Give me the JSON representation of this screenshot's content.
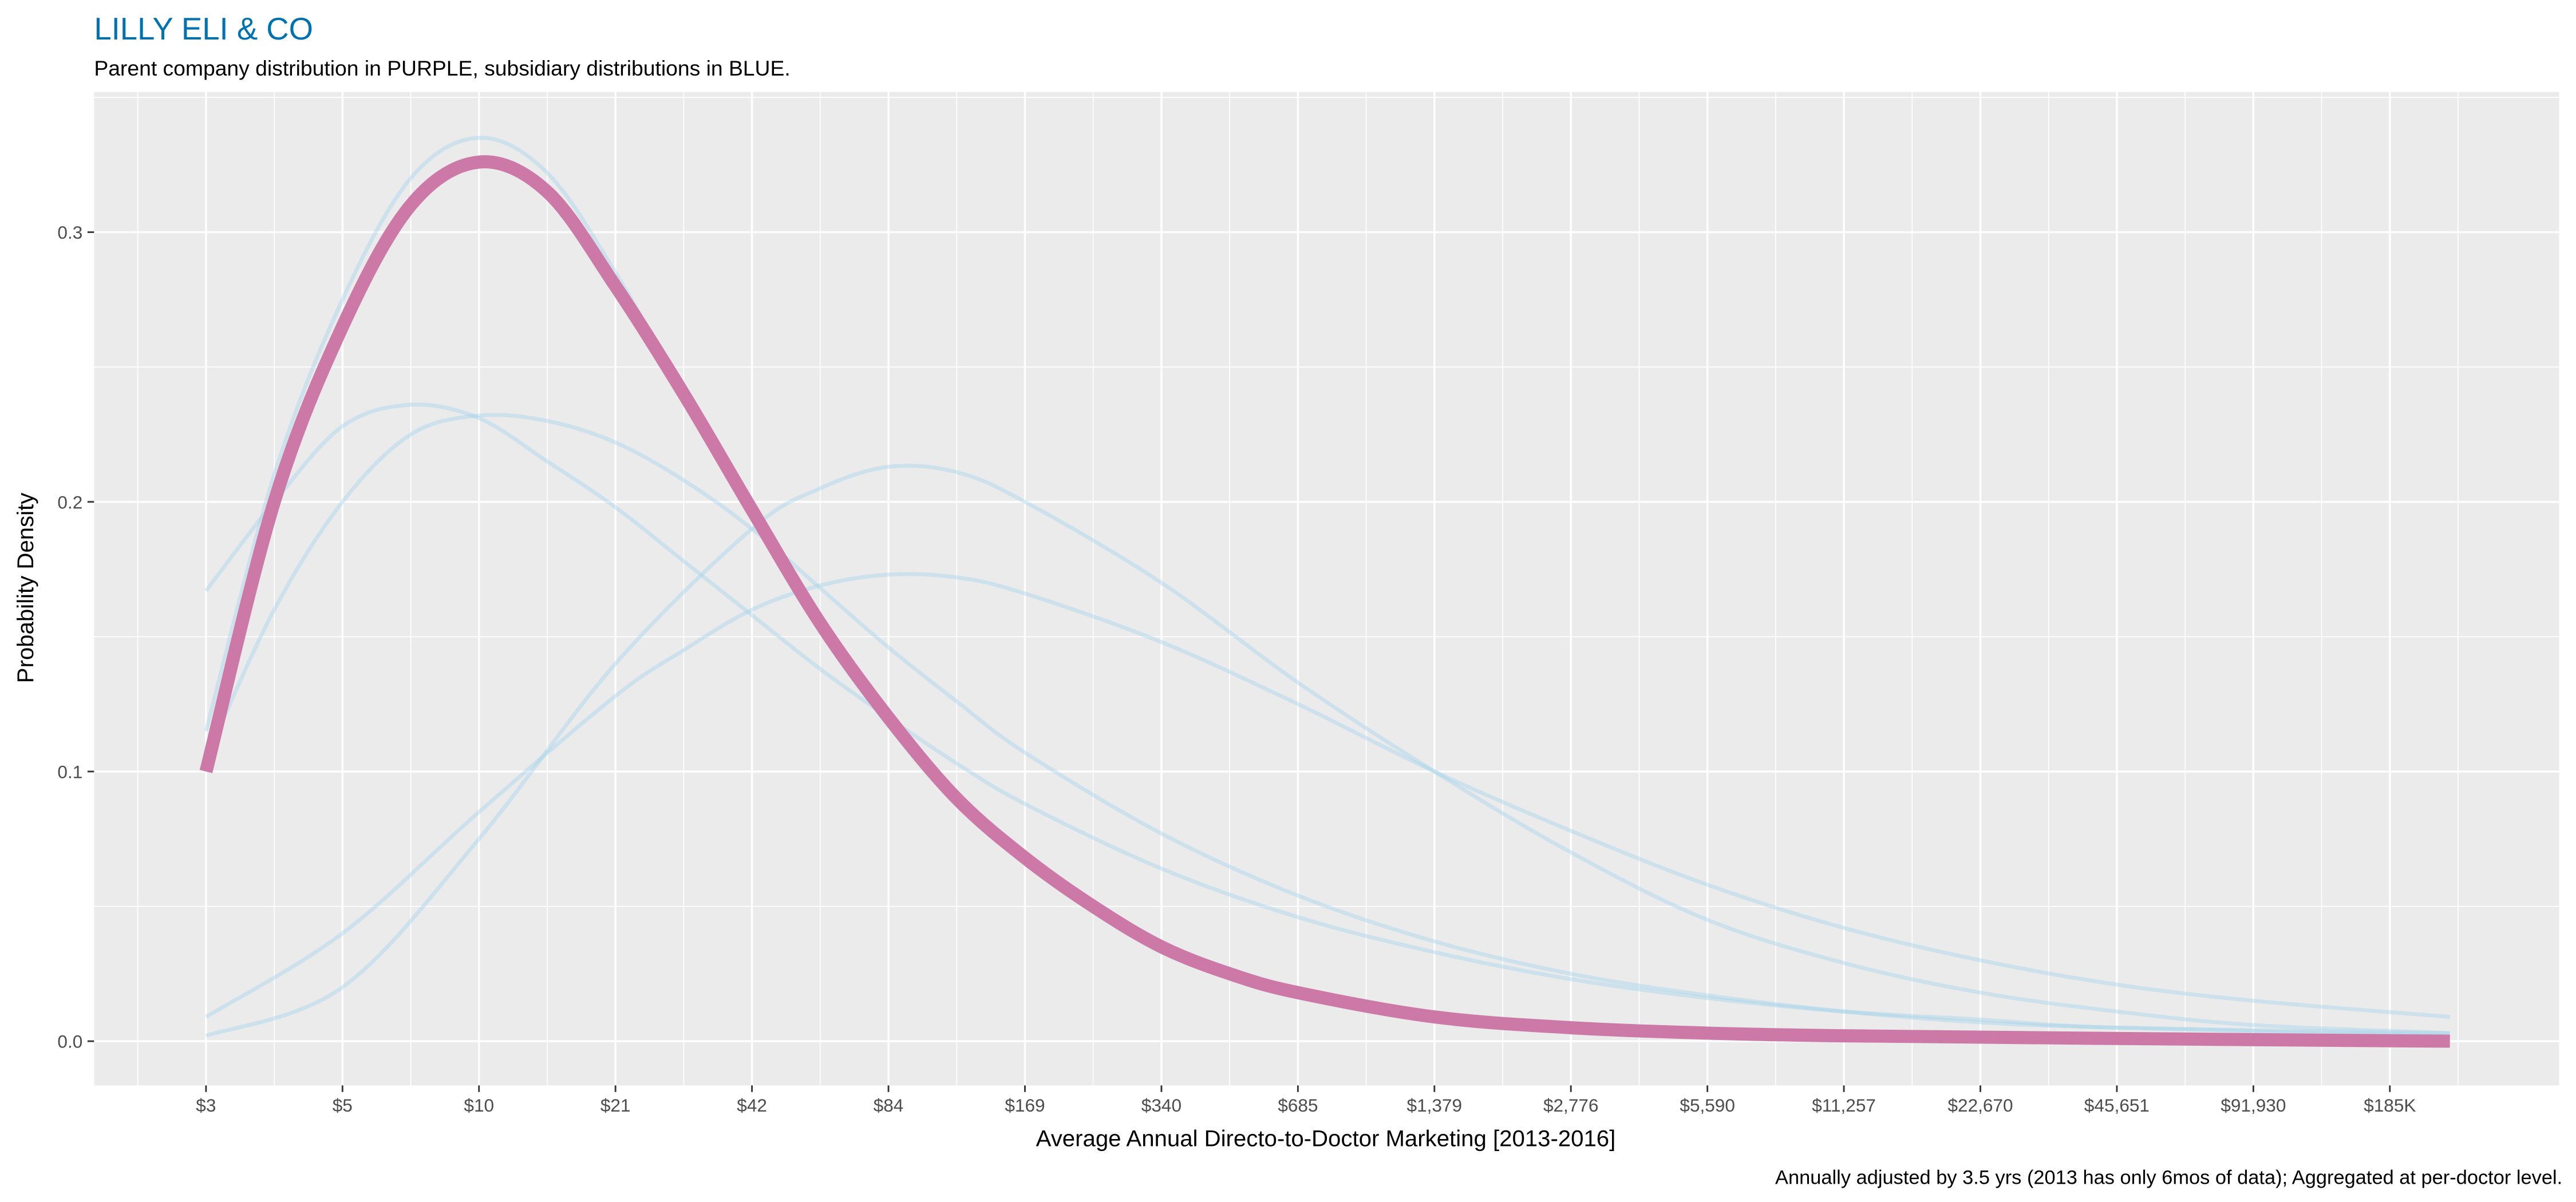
{
  "chart_data": {
    "type": "line",
    "title": "LILLY ELI & CO",
    "subtitle": "Parent company distribution in PURPLE, subsidiary distributions in BLUE.",
    "xlabel": "Average Annual Directo-to-Doctor Marketing [2013-2016]",
    "ylabel": "Probability Density",
    "caption": "Annually adjusted by 3.5 yrs (2013 has only 6mos of data); Aggregated at per-doctor level.",
    "x_scale": "log2 (each tick doubles); x values given as tick index",
    "x_tick_labels": [
      "$3",
      "$5",
      "$10",
      "$21",
      "$42",
      "$84",
      "$169",
      "$340",
      "$685",
      "$1,379",
      "$2,776",
      "$5,590",
      "$11,257",
      "$22,670",
      "$45,651",
      "$91,930",
      "$185K"
    ],
    "xlim_index": [
      -0.82,
      17.24
    ],
    "y_ticks": [
      "0.0",
      "0.1",
      "0.2",
      "0.3"
    ],
    "ylim": [
      -0.0164,
      0.352
    ],
    "grid": true,
    "colors": {
      "title": "#0072b2",
      "parent": "#cc79a7",
      "subsidiary": "#a6d4ec",
      "panel": "#ebebeb"
    },
    "series": [
      {
        "name": "subsidiary-1",
        "role": "subsidiary",
        "points": [
          [
            0,
            0.115
          ],
          [
            0.5,
            0.21
          ],
          [
            1,
            0.275
          ],
          [
            1.5,
            0.32
          ],
          [
            2,
            0.335
          ],
          [
            2.5,
            0.322
          ],
          [
            3,
            0.285
          ],
          [
            3.5,
            0.24
          ],
          [
            4,
            0.195
          ],
          [
            4.5,
            0.152
          ],
          [
            5,
            0.117
          ],
          [
            5.5,
            0.088
          ],
          [
            6,
            0.066
          ],
          [
            6.5,
            0.048
          ],
          [
            7,
            0.034
          ],
          [
            8,
            0.018
          ],
          [
            9,
            0.01
          ],
          [
            10,
            0.006
          ],
          [
            11,
            0.004
          ],
          [
            12,
            0.003
          ],
          [
            14,
            0.002
          ],
          [
            16.44,
            0.001
          ]
        ]
      },
      {
        "name": "subsidiary-2",
        "role": "subsidiary",
        "points": [
          [
            0,
            0.167
          ],
          [
            0.5,
            0.2
          ],
          [
            1,
            0.228
          ],
          [
            1.5,
            0.236
          ],
          [
            2,
            0.231
          ],
          [
            2.5,
            0.215
          ],
          [
            3,
            0.198
          ],
          [
            3.5,
            0.178
          ],
          [
            4,
            0.158
          ],
          [
            4.5,
            0.138
          ],
          [
            5,
            0.12
          ],
          [
            5.5,
            0.103
          ],
          [
            6,
            0.088
          ],
          [
            7,
            0.064
          ],
          [
            8,
            0.046
          ],
          [
            9,
            0.033
          ],
          [
            10,
            0.023
          ],
          [
            11,
            0.016
          ],
          [
            12,
            0.011
          ],
          [
            13,
            0.008
          ],
          [
            14,
            0.005
          ],
          [
            16.44,
            0.003
          ]
        ]
      },
      {
        "name": "subsidiary-3",
        "role": "subsidiary",
        "points": [
          [
            0,
            0.105
          ],
          [
            0.5,
            0.16
          ],
          [
            1,
            0.2
          ],
          [
            1.5,
            0.225
          ],
          [
            2,
            0.232
          ],
          [
            2.5,
            0.23
          ],
          [
            3,
            0.222
          ],
          [
            3.5,
            0.208
          ],
          [
            4,
            0.19
          ],
          [
            4.5,
            0.168
          ],
          [
            5,
            0.146
          ],
          [
            5.5,
            0.126
          ],
          [
            6,
            0.107
          ],
          [
            7,
            0.077
          ],
          [
            8,
            0.054
          ],
          [
            9,
            0.037
          ],
          [
            10,
            0.025
          ],
          [
            11,
            0.017
          ],
          [
            12,
            0.011
          ],
          [
            13,
            0.007
          ],
          [
            14,
            0.005
          ],
          [
            16.44,
            0.002
          ]
        ]
      },
      {
        "name": "subsidiary-4",
        "role": "subsidiary",
        "points": [
          [
            0,
            0.009
          ],
          [
            1,
            0.04
          ],
          [
            2,
            0.085
          ],
          [
            3,
            0.128
          ],
          [
            3.5,
            0.145
          ],
          [
            4,
            0.16
          ],
          [
            4.5,
            0.169
          ],
          [
            5,
            0.173
          ],
          [
            5.5,
            0.172
          ],
          [
            6,
            0.166
          ],
          [
            7,
            0.148
          ],
          [
            8,
            0.125
          ],
          [
            9,
            0.1
          ],
          [
            10,
            0.078
          ],
          [
            11,
            0.058
          ],
          [
            12,
            0.042
          ],
          [
            13,
            0.03
          ],
          [
            14,
            0.021
          ],
          [
            15,
            0.015
          ],
          [
            16.44,
            0.009
          ]
        ]
      },
      {
        "name": "subsidiary-5",
        "role": "subsidiary",
        "points": [
          [
            0,
            0.002
          ],
          [
            1,
            0.02
          ],
          [
            2,
            0.075
          ],
          [
            3,
            0.14
          ],
          [
            4,
            0.19
          ],
          [
            4.5,
            0.205
          ],
          [
            5,
            0.213
          ],
          [
            5.5,
            0.211
          ],
          [
            6,
            0.2
          ],
          [
            7,
            0.17
          ],
          [
            8,
            0.133
          ],
          [
            9,
            0.1
          ],
          [
            10,
            0.07
          ],
          [
            11,
            0.045
          ],
          [
            12,
            0.029
          ],
          [
            13,
            0.018
          ],
          [
            14,
            0.011
          ],
          [
            15,
            0.006
          ],
          [
            16.44,
            0.003
          ]
        ]
      },
      {
        "name": "parent",
        "role": "parent",
        "points": [
          [
            0,
            0.1
          ],
          [
            0.5,
            0.2
          ],
          [
            1,
            0.265
          ],
          [
            1.5,
            0.31
          ],
          [
            2,
            0.326
          ],
          [
            2.5,
            0.315
          ],
          [
            3,
            0.28
          ],
          [
            3.5,
            0.24
          ],
          [
            4,
            0.197
          ],
          [
            4.5,
            0.155
          ],
          [
            5,
            0.12
          ],
          [
            5.5,
            0.09
          ],
          [
            6,
            0.068
          ],
          [
            6.5,
            0.05
          ],
          [
            7,
            0.035
          ],
          [
            7.5,
            0.025
          ],
          [
            8,
            0.018
          ],
          [
            9,
            0.009
          ],
          [
            10,
            0.005
          ],
          [
            11,
            0.003
          ],
          [
            12,
            0.002
          ],
          [
            14,
            0.001
          ],
          [
            16.44,
            0.0
          ]
        ]
      }
    ]
  }
}
